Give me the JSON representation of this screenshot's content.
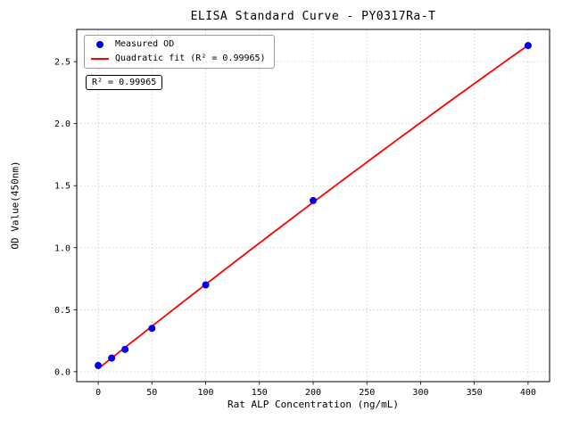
{
  "chart_data": {
    "type": "scatter",
    "title": "ELISA Standard Curve - PY0317Ra-T",
    "xlabel": "Rat ALP Concentration (ng/mL)",
    "ylabel": "OD Value(450nm)",
    "xlim": [
      -20,
      420
    ],
    "ylim": [
      -0.08,
      2.76
    ],
    "xticks": [
      0,
      50,
      100,
      150,
      200,
      250,
      300,
      350,
      400
    ],
    "yticks": [
      0.0,
      0.5,
      1.0,
      1.5,
      2.0,
      2.5
    ],
    "grid": true,
    "grid_color": "#c8c8c8",
    "legend_position": "upper left",
    "annotation": "R² = 0.99965",
    "series": [
      {
        "name": "Measured OD",
        "type": "scatter",
        "color": "#0000ee",
        "x": [
          0,
          12.5,
          25,
          50,
          100,
          200,
          400
        ],
        "y": [
          0.05,
          0.11,
          0.18,
          0.35,
          0.7,
          1.38,
          2.63
        ]
      },
      {
        "name": "Quadratic fit (R² = 0.99965)",
        "type": "line",
        "fit": "quadratic",
        "color": "#ff0000"
      }
    ]
  }
}
